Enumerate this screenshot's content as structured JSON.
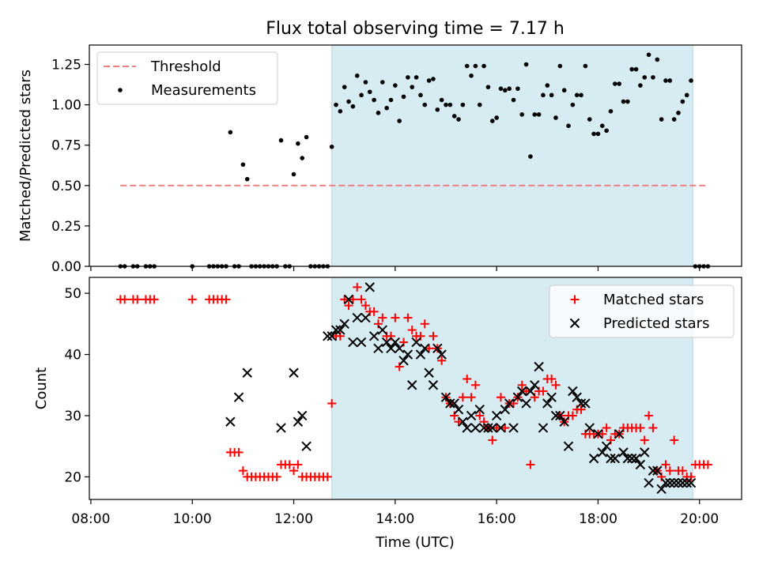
{
  "title": "Flux total observing time = 7.17 h",
  "colors": {
    "threshold": "#f08080",
    "measurements": "#000000",
    "matched": "#ff0000",
    "predicted": "#000000",
    "shade": "#add8e6"
  },
  "chart_data": [
    {
      "type": "scatter",
      "ylabel": "Matched/Predicted stars",
      "ylim": [
        0,
        1.37
      ],
      "yticks": [
        0.0,
        0.25,
        0.5,
        0.75,
        1.0,
        1.25
      ],
      "yticklabels": [
        "0.00",
        "0.25",
        "0.50",
        "0.75",
        "1.00",
        "1.25"
      ],
      "xlim_hours": [
        7.97,
        20.83
      ],
      "shaded_interval": [
        "12:45",
        "19:52"
      ],
      "legend": {
        "placement": "top-left",
        "entries": [
          "Threshold",
          "Measurements"
        ]
      },
      "threshold": {
        "name": "Threshold",
        "x": [
          "08:35",
          "20:10"
        ],
        "y": 0.5
      },
      "series": [
        {
          "name": "Measurements",
          "x": [
            "08:35",
            "08:40",
            "08:50",
            "08:55",
            "09:05",
            "09:10",
            "09:15",
            "10:00",
            "10:20",
            "10:25",
            "10:30",
            "10:35",
            "10:40",
            "10:45",
            "10:50",
            "10:55",
            "11:00",
            "11:05",
            "11:10",
            "11:15",
            "11:20",
            "11:25",
            "11:30",
            "11:35",
            "11:40",
            "11:45",
            "11:50",
            "11:55",
            "12:00",
            "12:05",
            "12:10",
            "12:15",
            "12:20",
            "12:25",
            "12:30",
            "12:35",
            "12:40",
            "12:45",
            "12:50",
            "12:55",
            "13:00",
            "13:05",
            "13:10",
            "13:15",
            "13:20",
            "13:25",
            "13:30",
            "13:35",
            "13:40",
            "13:45",
            "13:50",
            "13:55",
            "14:00",
            "14:05",
            "14:10",
            "14:15",
            "14:20",
            "14:25",
            "14:30",
            "14:35",
            "14:40",
            "14:45",
            "14:50",
            "14:55",
            "15:00",
            "15:05",
            "15:10",
            "15:15",
            "15:20",
            "15:25",
            "15:30",
            "15:35",
            "15:40",
            "15:45",
            "15:50",
            "15:55",
            "16:00",
            "16:05",
            "16:10",
            "16:15",
            "16:20",
            "16:25",
            "16:30",
            "16:35",
            "16:40",
            "16:45",
            "16:50",
            "16:55",
            "17:00",
            "17:05",
            "17:10",
            "17:15",
            "17:20",
            "17:25",
            "17:30",
            "17:35",
            "17:40",
            "17:45",
            "17:50",
            "17:55",
            "18:00",
            "18:05",
            "18:10",
            "18:15",
            "18:20",
            "18:25",
            "18:30",
            "18:35",
            "18:40",
            "18:45",
            "18:50",
            "18:55",
            "19:00",
            "19:05",
            "19:10",
            "19:15",
            "19:20",
            "19:25",
            "19:30",
            "19:35",
            "19:40",
            "19:45",
            "19:50",
            "19:55",
            "20:00",
            "20:05",
            "20:10"
          ],
          "y": [
            0.0,
            0.0,
            0.0,
            0.0,
            0.0,
            0.0,
            0.0,
            0.0,
            0.0,
            0.0,
            0.0,
            0.0,
            0.0,
            0.83,
            0.0,
            0.0,
            0.63,
            0.54,
            0.0,
            0.0,
            0.0,
            0.0,
            0.0,
            0.0,
            0.0,
            0.78,
            0.0,
            0.0,
            0.57,
            0.76,
            0.67,
            0.8,
            0.0,
            0.0,
            0.0,
            0.0,
            0.0,
            0.74,
            1.0,
            0.96,
            1.11,
            1.02,
            0.99,
            1.18,
            1.06,
            1.14,
            1.08,
            1.03,
            0.95,
            1.14,
            0.98,
            1.03,
            1.12,
            0.9,
            1.05,
            1.17,
            1.11,
            1.17,
            1.06,
            1.0,
            1.15,
            1.16,
            0.97,
            1.03,
            1.0,
            1.0,
            0.93,
            0.91,
            1.0,
            1.24,
            1.18,
            1.24,
            1.0,
            1.24,
            1.11,
            0.9,
            0.92,
            1.1,
            1.09,
            1.1,
            1.03,
            1.1,
            0.94,
            1.25,
            0.68,
            0.94,
            0.94,
            1.06,
            1.12,
            1.06,
            0.92,
            1.24,
            1.09,
            0.87,
            1.0,
            1.06,
            1.06,
            1.24,
            0.91,
            0.82,
            0.82,
            0.87,
            0.84,
            0.96,
            1.13,
            1.13,
            1.02,
            1.02,
            1.22,
            1.22,
            1.12,
            1.17,
            1.31,
            1.17,
            1.28,
            0.91,
            1.15,
            1.15,
            0.91,
            0.95,
            1.02,
            1.06,
            1.15,
            0.0,
            0.0,
            0.0,
            0.0
          ]
        }
      ]
    },
    {
      "type": "scatter",
      "xlabel": "Time (UTC)",
      "ylabel": "Count",
      "ylim": [
        16.3,
        52.6
      ],
      "yticks": [
        20,
        30,
        40,
        50
      ],
      "yticklabels": [
        "20",
        "30",
        "40",
        "50"
      ],
      "xticks": [
        "08:00",
        "10:00",
        "12:00",
        "14:00",
        "16:00",
        "18:00",
        "20:00"
      ],
      "xlim_hours": [
        7.97,
        20.83
      ],
      "shaded_interval": [
        "12:45",
        "19:52"
      ],
      "legend": {
        "placement": "top-right",
        "entries": [
          "Matched stars",
          "Predicted stars"
        ]
      },
      "series": [
        {
          "name": "Matched stars",
          "marker": "+",
          "x": [
            "08:35",
            "08:40",
            "08:50",
            "08:55",
            "09:05",
            "09:10",
            "09:15",
            "10:00",
            "10:20",
            "10:25",
            "10:30",
            "10:35",
            "10:40",
            "10:45",
            "10:50",
            "10:55",
            "11:00",
            "11:05",
            "11:10",
            "11:15",
            "11:20",
            "11:25",
            "11:30",
            "11:35",
            "11:40",
            "11:45",
            "11:50",
            "11:55",
            "12:00",
            "12:05",
            "12:10",
            "12:15",
            "12:20",
            "12:25",
            "12:30",
            "12:35",
            "12:40",
            "12:45",
            "12:50",
            "12:55",
            "13:00",
            "13:05",
            "13:10",
            "13:15",
            "13:20",
            "13:25",
            "13:30",
            "13:35",
            "13:40",
            "13:45",
            "13:50",
            "13:55",
            "14:00",
            "14:05",
            "14:10",
            "14:15",
            "14:20",
            "14:25",
            "14:30",
            "14:35",
            "14:40",
            "14:45",
            "14:50",
            "14:55",
            "15:00",
            "15:05",
            "15:10",
            "15:15",
            "15:20",
            "15:25",
            "15:30",
            "15:35",
            "15:40",
            "15:45",
            "15:50",
            "15:55",
            "16:00",
            "16:05",
            "16:10",
            "16:15",
            "16:20",
            "16:25",
            "16:30",
            "16:35",
            "16:40",
            "16:45",
            "16:50",
            "16:55",
            "17:00",
            "17:05",
            "17:10",
            "17:15",
            "17:20",
            "17:25",
            "17:30",
            "17:35",
            "17:40",
            "17:45",
            "17:50",
            "17:55",
            "18:00",
            "18:05",
            "18:10",
            "18:15",
            "18:20",
            "18:25",
            "18:30",
            "18:35",
            "18:40",
            "18:45",
            "18:50",
            "18:55",
            "19:00",
            "19:05",
            "19:10",
            "19:15",
            "19:20",
            "19:25",
            "19:30",
            "19:35",
            "19:40",
            "19:45",
            "19:50",
            "19:55",
            "20:00",
            "20:05",
            "20:10"
          ],
          "y": [
            49,
            49,
            49,
            49,
            49,
            49,
            49,
            49,
            49,
            49,
            49,
            49,
            49,
            24,
            24,
            24,
            21,
            20,
            20,
            20,
            20,
            20,
            20,
            20,
            20,
            22,
            22,
            22,
            21,
            22,
            20,
            20,
            20,
            20,
            20,
            20,
            20,
            32,
            43,
            43,
            49,
            48,
            49,
            51,
            49,
            48,
            47,
            47,
            45,
            46,
            43,
            43,
            46,
            38,
            42,
            46,
            44,
            43,
            43,
            45,
            41,
            43,
            41,
            39,
            33,
            32,
            30,
            29,
            33,
            36,
            33,
            35,
            30,
            29,
            28,
            26,
            28,
            33,
            28,
            32,
            32,
            33,
            35,
            34,
            22,
            33,
            34,
            34,
            36,
            36,
            35,
            30,
            29,
            30,
            30,
            31,
            31,
            27,
            27,
            27,
            27,
            27,
            28,
            26,
            27,
            27,
            28,
            28,
            28,
            28,
            28,
            26,
            30,
            28,
            21,
            20,
            22,
            21,
            26,
            21,
            21,
            20,
            20,
            22,
            22,
            22,
            22
          ]
        },
        {
          "name": "Predicted stars",
          "marker": "x",
          "x": [
            "10:45",
            "10:55",
            "11:05",
            "11:45",
            "12:00",
            "12:05",
            "12:10",
            "12:15",
            "12:40",
            "12:45",
            "12:50",
            "12:55",
            "13:00",
            "13:05",
            "13:10",
            "13:15",
            "13:20",
            "13:25",
            "13:30",
            "13:35",
            "13:40",
            "13:45",
            "13:50",
            "13:55",
            "14:00",
            "14:05",
            "14:10",
            "14:15",
            "14:20",
            "14:25",
            "14:30",
            "14:35",
            "14:40",
            "14:45",
            "14:50",
            "14:55",
            "15:00",
            "15:05",
            "15:10",
            "15:15",
            "15:20",
            "15:25",
            "15:30",
            "15:35",
            "15:40",
            "15:45",
            "15:50",
            "15:55",
            "16:00",
            "16:05",
            "16:10",
            "16:15",
            "16:20",
            "16:25",
            "16:30",
            "16:35",
            "16:40",
            "16:45",
            "16:50",
            "16:55",
            "17:00",
            "17:05",
            "17:10",
            "17:15",
            "17:20",
            "17:25",
            "17:30",
            "17:35",
            "17:40",
            "17:45",
            "17:50",
            "17:55",
            "18:00",
            "18:05",
            "18:10",
            "18:15",
            "18:20",
            "18:25",
            "18:30",
            "18:35",
            "18:40",
            "18:45",
            "18:50",
            "18:55",
            "19:00",
            "19:05",
            "19:10",
            "19:15",
            "19:20",
            "19:25",
            "19:30",
            "19:35",
            "19:40",
            "19:45",
            "19:50"
          ],
          "y": [
            29,
            33,
            37,
            28,
            37,
            29,
            30,
            25,
            43,
            43,
            44,
            44,
            45,
            49,
            42,
            46,
            42,
            46,
            51,
            43,
            41,
            44,
            42,
            41,
            42,
            41,
            39,
            40,
            35,
            42,
            40,
            41,
            37,
            35,
            41,
            40,
            33,
            32,
            32,
            31,
            29,
            28,
            30,
            28,
            31,
            28,
            28,
            28,
            30,
            28,
            31,
            32,
            28,
            33,
            34,
            32,
            34,
            35,
            38,
            28,
            32,
            33,
            30,
            30,
            29,
            25,
            34,
            33,
            32,
            32,
            28,
            23,
            27,
            24,
            25,
            23,
            23,
            27,
            24,
            23,
            23,
            23,
            22,
            24,
            19,
            21,
            21,
            18,
            19,
            19,
            19,
            19,
            19,
            19,
            19
          ]
        }
      ]
    }
  ]
}
